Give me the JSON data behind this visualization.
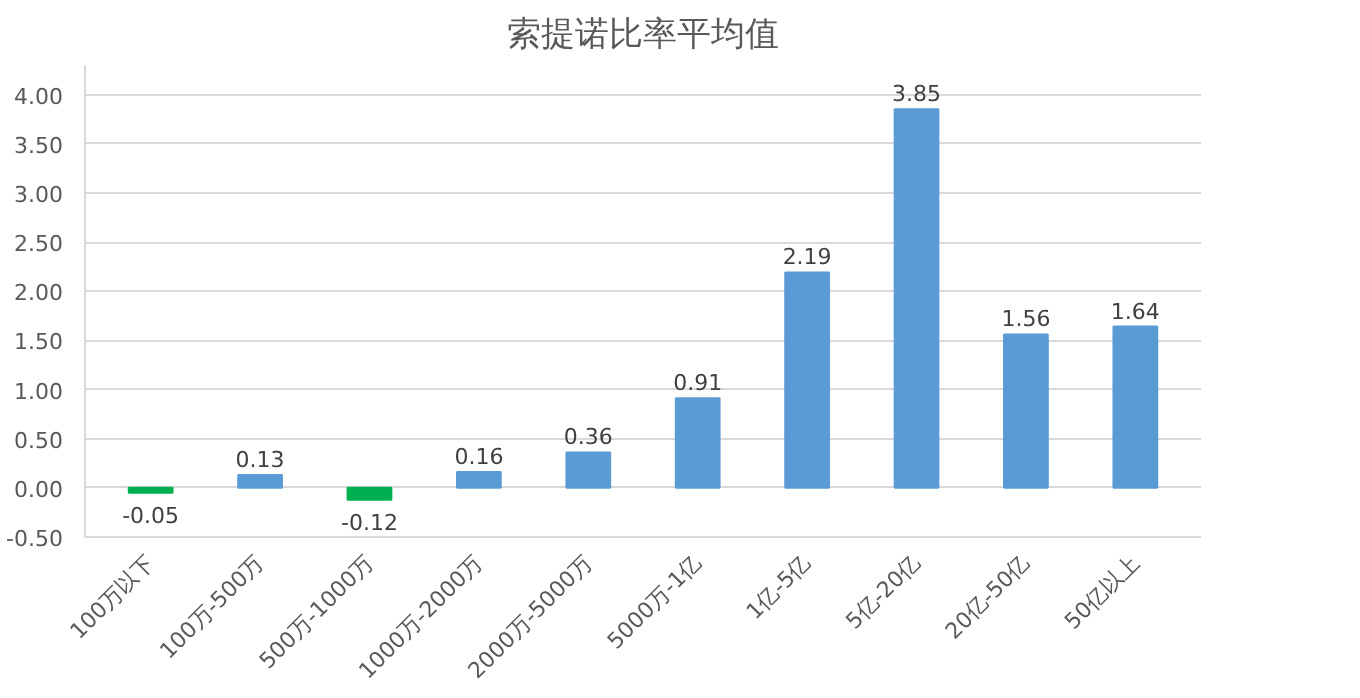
{
  "chart_data": {
    "type": "bar",
    "title": "索提诺比率平均值",
    "categories": [
      "100万以下",
      "100万-500万",
      "500万-1000万",
      "1000万-2000万",
      "2000万-5000万",
      "5000万-1亿",
      "1亿-5亿",
      "5亿-20亿",
      "20亿-50亿",
      "50亿以上"
    ],
    "values": [
      -0.05,
      0.13,
      -0.12,
      0.16,
      0.36,
      0.91,
      2.19,
      3.85,
      1.56,
      1.64
    ],
    "colors": [
      "#00b050",
      "#5b9bd5",
      "#00b050",
      "#5b9bd5",
      "#5b9bd5",
      "#5b9bd5",
      "#5b9bd5",
      "#5b9bd5",
      "#5b9bd5",
      "#5b9bd5"
    ],
    "ylim": [
      -0.5,
      4.3
    ],
    "yticks": [
      {
        "value": -0.5,
        "label": "-0.50"
      },
      {
        "value": 0,
        "label": "0.00"
      },
      {
        "value": 0.5,
        "label": "0.50"
      },
      {
        "value": 1,
        "label": "1.00"
      },
      {
        "value": 1.5,
        "label": "1.50"
      },
      {
        "value": 2,
        "label": "2.00"
      },
      {
        "value": 2.5,
        "label": "2.50"
      },
      {
        "value": 3,
        "label": "3.00"
      },
      {
        "value": 3.5,
        "label": "3.50"
      },
      {
        "value": 4,
        "label": "4.00"
      }
    ],
    "grid": "y",
    "data_labels": true
  }
}
